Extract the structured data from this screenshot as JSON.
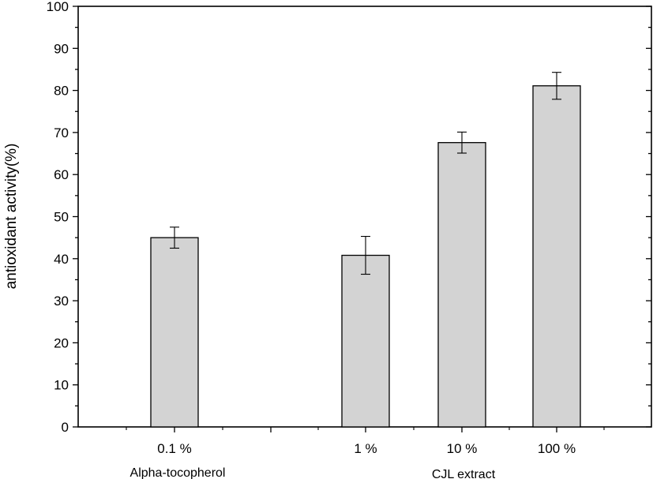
{
  "chart_data": {
    "type": "bar",
    "categories": [
      "0.1 %",
      "1 %",
      "10 %",
      "100 %"
    ],
    "values": [
      45.0,
      40.8,
      67.6,
      81.1
    ],
    "errors": [
      2.5,
      4.5,
      2.5,
      3.2
    ],
    "group_labels": [
      "Alpha-tocopherol",
      "CJL extract"
    ],
    "xlabel": "",
    "ylabel": "antioxidant activity(%)",
    "ylim": [
      0,
      100
    ],
    "yticks": [
      0,
      10,
      20,
      30,
      40,
      50,
      60,
      70,
      80,
      90,
      100
    ],
    "grid": false,
    "colors": {
      "bar_fill": "#d3d3d3",
      "bar_stroke": "#000000",
      "axis": "#000000"
    }
  }
}
